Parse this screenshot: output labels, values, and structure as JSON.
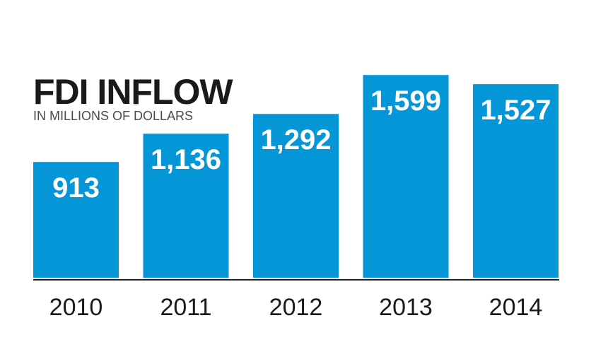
{
  "chart_data": {
    "type": "bar",
    "title": "FDI INFLOW",
    "subtitle": "IN MILLIONS OF DOLLARS",
    "categories": [
      "2010",
      "2011",
      "2012",
      "2013",
      "2014"
    ],
    "values": [
      913,
      1136,
      1292,
      1599,
      1527
    ],
    "value_labels": [
      "913",
      "1,136",
      "1,292",
      "1,599",
      "1,527"
    ],
    "xlabel": "",
    "ylabel": "",
    "ylim": [
      0,
      1600
    ],
    "grid": false,
    "legend": "none",
    "bar_color": "#0596d8",
    "baseline_color": "#222222"
  }
}
